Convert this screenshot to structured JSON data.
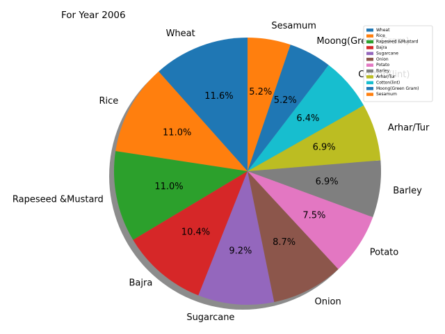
{
  "chart_data": {
    "type": "pie",
    "title": "For Year 2006",
    "categories": [
      "Wheat",
      "Rice",
      "Rapeseed &Mustard",
      "Bajra",
      "Sugarcane",
      "Onion",
      "Potato",
      "Barley",
      "Arhar/Tur",
      "Cotton(lint)",
      "Moong(Green Gram)",
      "Sesamum"
    ],
    "values": [
      11.6,
      11.0,
      11.0,
      10.4,
      9.2,
      8.7,
      7.5,
      6.9,
      6.9,
      6.4,
      5.2,
      5.2
    ],
    "value_labels": [
      "11.6%",
      "11.0%",
      "11.0%",
      "10.4%",
      "9.2%",
      "8.7%",
      "7.5%",
      "6.9%",
      "6.9%",
      "6.4%",
      "5.2%",
      "5.2%"
    ],
    "colors": [
      "#1f77b4",
      "#ff7f0e",
      "#2ca02c",
      "#d62728",
      "#9467bd",
      "#8c564b",
      "#e377c2",
      "#7f7f7f",
      "#bcbd22",
      "#17becf",
      "#1f77b4",
      "#ff7f0e"
    ],
    "start_angle_deg": 90,
    "direction": "counterclockwise",
    "shadow": true,
    "legend": "top-right"
  }
}
